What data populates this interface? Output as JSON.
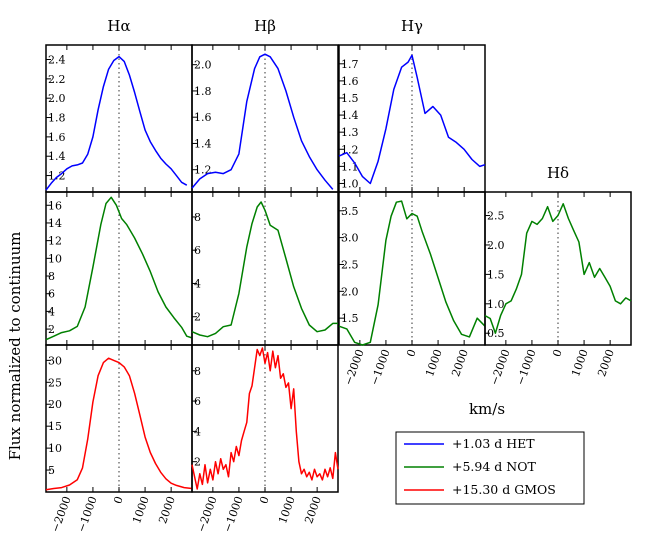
{
  "figure": {
    "ylabel": "Flux normalized to continuum",
    "xlabel": "km/s"
  },
  "legend": [
    {
      "label": "+1.03 d HET",
      "color": "#0000ff"
    },
    {
      "label": "+5.94 d NOT",
      "color": "#008000"
    },
    {
      "label": "+15.30 d GMOS",
      "color": "#ff0000"
    }
  ],
  "chart_data": [
    {
      "type": "line",
      "panel": "Halpha-HET",
      "title": "Hα",
      "epoch": "+1.03 d HET",
      "color": "#0000ff",
      "xlim": [
        -2800,
        2800
      ],
      "ylim": [
        1.03,
        2.55
      ],
      "yticks": [
        1.2,
        1.4,
        1.6,
        1.8,
        2.0,
        2.2,
        2.4
      ],
      "x": [
        -2800,
        -2600,
        -2400,
        -2200,
        -2000,
        -1800,
        -1600,
        -1400,
        -1200,
        -1000,
        -800,
        -600,
        -400,
        -200,
        0,
        200,
        400,
        600,
        800,
        1000,
        1200,
        1400,
        1600,
        1800,
        2000,
        2200,
        2400,
        2600
      ],
      "y": [
        1.05,
        1.12,
        1.18,
        1.22,
        1.27,
        1.3,
        1.31,
        1.33,
        1.42,
        1.6,
        1.88,
        2.12,
        2.3,
        2.39,
        2.43,
        2.38,
        2.24,
        2.06,
        1.86,
        1.67,
        1.55,
        1.46,
        1.38,
        1.32,
        1.27,
        1.2,
        1.13,
        1.1
      ]
    },
    {
      "type": "line",
      "panel": "Hbeta-HET",
      "title": "Hβ",
      "epoch": "+1.03 d HET",
      "color": "#0000ff",
      "xlim": [
        -2800,
        2800
      ],
      "ylim": [
        1.03,
        2.15
      ],
      "yticks": [
        1.2,
        1.4,
        1.6,
        1.8,
        2.0
      ],
      "x": [
        -2800,
        -2500,
        -2200,
        -1900,
        -1600,
        -1300,
        -1000,
        -700,
        -400,
        -200,
        0,
        200,
        500,
        800,
        1100,
        1400,
        1700,
        2000,
        2300,
        2600
      ],
      "y": [
        1.06,
        1.13,
        1.17,
        1.18,
        1.17,
        1.2,
        1.32,
        1.72,
        1.97,
        2.06,
        2.08,
        2.06,
        1.97,
        1.8,
        1.6,
        1.42,
        1.3,
        1.2,
        1.12,
        1.05
      ]
    },
    {
      "type": "line",
      "panel": "Hgamma-HET",
      "title": "Hγ",
      "epoch": "+1.03 d HET",
      "color": "#0000ff",
      "xlim": [
        -2800,
        2800
      ],
      "ylim": [
        0.95,
        1.81
      ],
      "yticks": [
        1.0,
        1.1,
        1.2,
        1.3,
        1.4,
        1.5,
        1.6,
        1.7
      ],
      "x": [
        -2800,
        -2500,
        -2200,
        -1900,
        -1600,
        -1300,
        -1000,
        -700,
        -400,
        -150,
        0,
        200,
        500,
        800,
        1100,
        1400,
        1700,
        2000,
        2300,
        2600,
        2800
      ],
      "y": [
        1.16,
        1.18,
        1.12,
        1.04,
        1.0,
        1.13,
        1.32,
        1.55,
        1.68,
        1.71,
        1.75,
        1.62,
        1.41,
        1.45,
        1.4,
        1.27,
        1.24,
        1.2,
        1.14,
        1.1,
        1.11
      ]
    },
    {
      "type": "line",
      "panel": "Halpha-NOT",
      "title": "",
      "epoch": "+5.94 d NOT",
      "color": "#008000",
      "xlim": [
        -2800,
        2800
      ],
      "ylim": [
        0.2,
        17.5
      ],
      "yticks": [
        2,
        4,
        6,
        8,
        10,
        12,
        14,
        16
      ],
      "x": [
        -2800,
        -2500,
        -2200,
        -1900,
        -1600,
        -1300,
        -1000,
        -700,
        -500,
        -300,
        -100,
        100,
        300,
        600,
        900,
        1200,
        1500,
        1800,
        2100,
        2400,
        2600,
        2800
      ],
      "y": [
        0.8,
        1.2,
        1.6,
        1.8,
        2.3,
        4.5,
        9.0,
        13.8,
        16.2,
        16.9,
        16.0,
        14.5,
        13.8,
        12.3,
        10.5,
        8.5,
        6.2,
        4.5,
        3.3,
        2.2,
        1.2,
        1.0
      ]
    },
    {
      "type": "line",
      "panel": "Hbeta-NOT",
      "title": "",
      "epoch": "+5.94 d NOT",
      "color": "#008000",
      "xlim": [
        -2800,
        2800
      ],
      "ylim": [
        0.3,
        9.5
      ],
      "yticks": [
        2,
        4,
        6,
        8
      ],
      "x": [
        -2800,
        -2500,
        -2200,
        -1900,
        -1600,
        -1300,
        -1000,
        -700,
        -500,
        -300,
        -150,
        0,
        200,
        500,
        800,
        1100,
        1400,
        1700,
        2000,
        2300,
        2600,
        2800
      ],
      "y": [
        1.1,
        0.9,
        0.8,
        1.0,
        1.4,
        1.5,
        3.4,
        6.2,
        7.6,
        8.6,
        8.9,
        8.4,
        7.5,
        7.2,
        5.5,
        3.8,
        2.5,
        1.5,
        1.1,
        1.2,
        1.6,
        1.6
      ]
    },
    {
      "type": "line",
      "panel": "Hgamma-NOT",
      "title": "",
      "epoch": "+5.94 d NOT",
      "color": "#008000",
      "xlim": [
        -2800,
        2800
      ],
      "ylim": [
        1.0,
        3.85
      ],
      "yticks": [
        1.5,
        2.0,
        2.5,
        3.0,
        3.5
      ],
      "x": [
        -2800,
        -2500,
        -2200,
        -1900,
        -1600,
        -1300,
        -1000,
        -800,
        -600,
        -400,
        -200,
        0,
        200,
        400,
        700,
        1000,
        1300,
        1600,
        1900,
        2200,
        2500,
        2800
      ],
      "y": [
        1.35,
        1.3,
        1.05,
        1.0,
        1.05,
        1.75,
        2.95,
        3.4,
        3.66,
        3.68,
        3.35,
        3.45,
        3.4,
        3.1,
        2.7,
        2.25,
        1.8,
        1.45,
        1.2,
        1.15,
        1.5,
        1.35
      ]
    },
    {
      "type": "line",
      "panel": "Hdelta-NOT",
      "title": "Hδ",
      "epoch": "+5.94 d NOT",
      "color": "#008000",
      "xlim": [
        -2800,
        2800
      ],
      "ylim": [
        0.3,
        2.9
      ],
      "yticks": [
        0.5,
        1.0,
        1.5,
        2.0,
        2.5
      ],
      "x": [
        -2800,
        -2600,
        -2400,
        -2200,
        -2000,
        -1800,
        -1600,
        -1400,
        -1200,
        -1000,
        -800,
        -600,
        -400,
        -200,
        0,
        200,
        400,
        600,
        800,
        1000,
        1200,
        1400,
        1600,
        1800,
        2000,
        2200,
        2400,
        2600,
        2800
      ],
      "y": [
        0.8,
        0.75,
        0.5,
        0.8,
        1.0,
        1.05,
        1.25,
        1.5,
        2.2,
        2.4,
        2.35,
        2.45,
        2.65,
        2.4,
        2.5,
        2.7,
        2.45,
        2.25,
        2.05,
        1.5,
        1.7,
        1.45,
        1.6,
        1.45,
        1.3,
        1.05,
        1.0,
        1.1,
        1.05
      ]
    },
    {
      "type": "line",
      "panel": "Halpha-GMOS",
      "title": "",
      "epoch": "+15.30 d GMOS",
      "color": "#ff0000",
      "xlim": [
        -2800,
        2800
      ],
      "ylim": [
        0.0,
        33.5
      ],
      "yticks": [
        5,
        10,
        15,
        20,
        25,
        30
      ],
      "x": [
        -2800,
        -2500,
        -2200,
        -1900,
        -1600,
        -1400,
        -1200,
        -1000,
        -800,
        -600,
        -400,
        -200,
        0,
        200,
        400,
        600,
        800,
        1000,
        1200,
        1400,
        1600,
        1800,
        2000,
        2200,
        2500,
        2800
      ],
      "y": [
        0.5,
        0.8,
        1.0,
        1.6,
        2.8,
        5.5,
        12.0,
        20.5,
        26.5,
        29.5,
        30.5,
        30.0,
        29.5,
        28.5,
        26.5,
        22.5,
        17.5,
        12.5,
        9.0,
        6.5,
        4.5,
        3.0,
        2.0,
        1.5,
        1.0,
        0.8
      ]
    },
    {
      "type": "line",
      "panel": "Hbeta-GMOS",
      "title": "",
      "epoch": "+15.30 d GMOS",
      "color": "#ff0000",
      "xlim": [
        -2800,
        2800
      ],
      "ylim": [
        0.0,
        9.7
      ],
      "yticks": [
        2,
        4,
        6,
        8
      ],
      "x": [
        -2800,
        -2700,
        -2600,
        -2500,
        -2400,
        -2300,
        -2200,
        -2100,
        -2000,
        -1900,
        -1800,
        -1700,
        -1600,
        -1500,
        -1400,
        -1300,
        -1200,
        -1100,
        -1000,
        -900,
        -800,
        -700,
        -600,
        -500,
        -400,
        -300,
        -200,
        -100,
        0,
        100,
        200,
        300,
        400,
        500,
        600,
        700,
        800,
        900,
        1000,
        1100,
        1200,
        1300,
        1400,
        1500,
        1600,
        1700,
        1800,
        1900,
        2000,
        2100,
        2200,
        2300,
        2400,
        2500,
        2600,
        2700,
        2800
      ],
      "y": [
        1.8,
        1.0,
        0.2,
        1.2,
        0.5,
        1.8,
        0.6,
        1.5,
        0.8,
        2.0,
        1.2,
        2.2,
        1.5,
        1.8,
        1.0,
        2.6,
        2.0,
        3.0,
        2.4,
        3.4,
        4.0,
        4.6,
        6.5,
        7.0,
        8.2,
        9.4,
        9.0,
        9.5,
        8.5,
        9.2,
        8.0,
        9.3,
        8.2,
        9.0,
        7.5,
        7.8,
        6.9,
        7.2,
        5.5,
        6.8,
        4.0,
        2.0,
        1.2,
        1.5,
        1.0,
        1.3,
        0.8,
        1.5,
        1.0,
        1.2,
        0.8,
        1.5,
        1.0,
        1.6,
        0.9,
        2.6,
        1.5
      ]
    }
  ]
}
